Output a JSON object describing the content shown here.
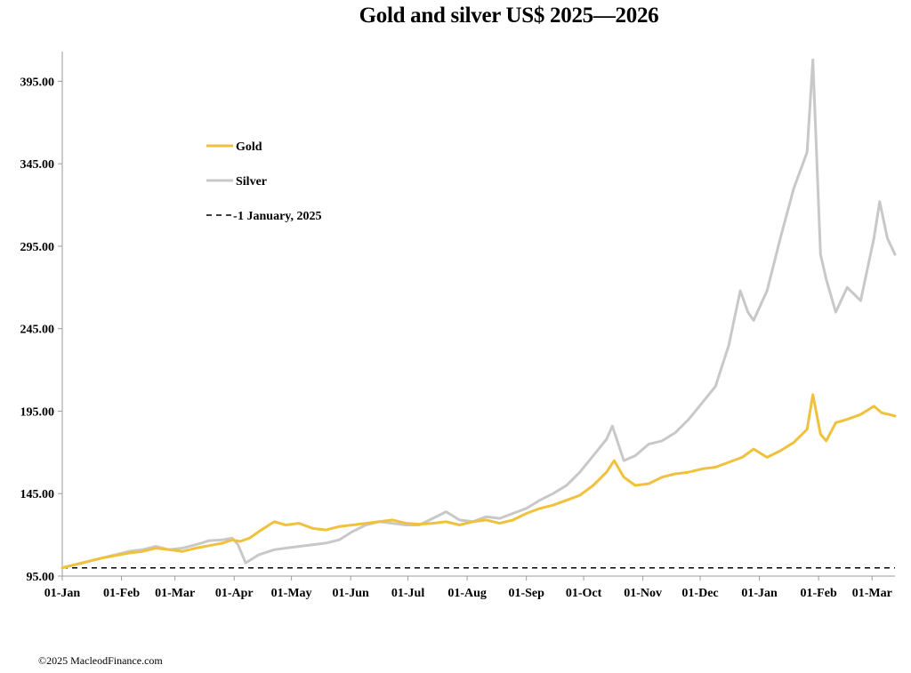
{
  "chart_data": {
    "type": "line",
    "title": "Gold and silver  US$ 2025—2026",
    "xlabel": "",
    "ylabel": "",
    "ylim": [
      95,
      413
    ],
    "yticks": [
      "95.00",
      "145.00",
      "195.00",
      "245.00",
      "295.00",
      "345.00",
      "395.00"
    ],
    "xticks": [
      "01-Jan",
      "01-Feb",
      "01-Mar",
      "01-Apr",
      "01-May",
      "01-Jun",
      "01-Jul",
      "01-Aug",
      "01-Sep",
      "01-Oct",
      "01-Nov",
      "01-Dec",
      "01-Jan",
      "01-Feb",
      "01-Mar"
    ],
    "legend_placement": "upper-left",
    "grid": false,
    "baseline": {
      "label": "1 January, 2025",
      "value": 100,
      "color": "#000000",
      "dash": true
    },
    "series": [
      {
        "name": "Gold",
        "color": "#F0C13C",
        "points": [
          [
            "2025-01-01",
            100
          ],
          [
            "2025-01-08",
            102
          ],
          [
            "2025-01-15",
            104
          ],
          [
            "2025-01-22",
            106
          ],
          [
            "2025-01-29",
            107.5
          ],
          [
            "2025-02-05",
            109
          ],
          [
            "2025-02-12",
            110
          ],
          [
            "2025-02-19",
            112
          ],
          [
            "2025-02-26",
            111
          ],
          [
            "2025-03-05",
            110
          ],
          [
            "2025-03-12",
            112
          ],
          [
            "2025-03-19",
            113.5
          ],
          [
            "2025-03-26",
            115
          ],
          [
            "2025-03-31",
            117
          ],
          [
            "2025-04-04",
            116
          ],
          [
            "2025-04-09",
            118
          ],
          [
            "2025-04-14",
            122
          ],
          [
            "2025-04-22",
            128
          ],
          [
            "2025-04-28",
            126
          ],
          [
            "2025-05-05",
            127
          ],
          [
            "2025-05-12",
            124
          ],
          [
            "2025-05-19",
            123
          ],
          [
            "2025-05-26",
            125
          ],
          [
            "2025-06-02",
            126
          ],
          [
            "2025-06-09",
            127
          ],
          [
            "2025-06-16",
            128
          ],
          [
            "2025-06-23",
            129
          ],
          [
            "2025-06-30",
            127
          ],
          [
            "2025-07-07",
            126.5
          ],
          [
            "2025-07-14",
            127
          ],
          [
            "2025-07-21",
            128
          ],
          [
            "2025-07-28",
            126
          ],
          [
            "2025-08-04",
            128
          ],
          [
            "2025-08-11",
            129
          ],
          [
            "2025-08-18",
            127
          ],
          [
            "2025-08-25",
            129
          ],
          [
            "2025-09-01",
            133
          ],
          [
            "2025-09-08",
            136
          ],
          [
            "2025-09-15",
            138
          ],
          [
            "2025-09-22",
            141
          ],
          [
            "2025-09-29",
            144
          ],
          [
            "2025-10-06",
            150
          ],
          [
            "2025-10-13",
            158
          ],
          [
            "2025-10-17",
            165
          ],
          [
            "2025-10-22",
            155
          ],
          [
            "2025-10-28",
            150
          ],
          [
            "2025-11-04",
            151
          ],
          [
            "2025-11-11",
            155
          ],
          [
            "2025-11-18",
            157
          ],
          [
            "2025-11-25",
            158
          ],
          [
            "2025-12-02",
            160
          ],
          [
            "2025-12-09",
            161
          ],
          [
            "2025-12-16",
            164
          ],
          [
            "2025-12-23",
            167
          ],
          [
            "2025-12-29",
            172
          ],
          [
            "2026-01-05",
            167
          ],
          [
            "2026-01-12",
            171
          ],
          [
            "2026-01-19",
            176
          ],
          [
            "2026-01-26",
            184
          ],
          [
            "2026-01-29",
            205
          ],
          [
            "2026-02-02",
            181
          ],
          [
            "2026-02-05",
            177
          ],
          [
            "2026-02-10",
            188
          ],
          [
            "2026-02-16",
            190
          ],
          [
            "2026-02-23",
            193
          ],
          [
            "2026-03-02",
            198
          ],
          [
            "2026-03-06",
            194
          ],
          [
            "2026-03-10",
            193
          ],
          [
            "2026-03-13",
            192
          ]
        ]
      },
      {
        "name": "Silver",
        "color": "#C8C8C8",
        "points": [
          [
            "2025-01-01",
            100
          ],
          [
            "2025-01-08",
            102
          ],
          [
            "2025-01-15",
            104
          ],
          [
            "2025-01-22",
            106
          ],
          [
            "2025-01-29",
            108
          ],
          [
            "2025-02-05",
            110
          ],
          [
            "2025-02-12",
            111
          ],
          [
            "2025-02-19",
            113
          ],
          [
            "2025-02-26",
            111
          ],
          [
            "2025-03-05",
            112
          ],
          [
            "2025-03-12",
            114
          ],
          [
            "2025-03-19",
            116.5
          ],
          [
            "2025-03-26",
            117
          ],
          [
            "2025-03-31",
            118
          ],
          [
            "2025-04-03",
            114
          ],
          [
            "2025-04-07",
            103
          ],
          [
            "2025-04-14",
            108
          ],
          [
            "2025-04-22",
            111
          ],
          [
            "2025-04-28",
            112
          ],
          [
            "2025-05-05",
            113
          ],
          [
            "2025-05-12",
            114
          ],
          [
            "2025-05-19",
            115
          ],
          [
            "2025-05-26",
            117
          ],
          [
            "2025-06-02",
            122
          ],
          [
            "2025-06-09",
            126
          ],
          [
            "2025-06-16",
            128
          ],
          [
            "2025-06-23",
            127
          ],
          [
            "2025-06-30",
            126
          ],
          [
            "2025-07-07",
            126
          ],
          [
            "2025-07-14",
            130
          ],
          [
            "2025-07-21",
            134
          ],
          [
            "2025-07-28",
            129
          ],
          [
            "2025-08-04",
            128
          ],
          [
            "2025-08-11",
            131
          ],
          [
            "2025-08-18",
            130
          ],
          [
            "2025-08-25",
            133
          ],
          [
            "2025-09-01",
            136
          ],
          [
            "2025-09-08",
            141
          ],
          [
            "2025-09-15",
            145
          ],
          [
            "2025-09-22",
            150
          ],
          [
            "2025-09-29",
            158
          ],
          [
            "2025-10-06",
            168
          ],
          [
            "2025-10-13",
            178
          ],
          [
            "2025-10-16",
            186
          ],
          [
            "2025-10-22",
            165
          ],
          [
            "2025-10-28",
            168
          ],
          [
            "2025-11-04",
            175
          ],
          [
            "2025-11-11",
            177
          ],
          [
            "2025-11-18",
            182
          ],
          [
            "2025-11-25",
            190
          ],
          [
            "2025-12-02",
            200
          ],
          [
            "2025-12-09",
            210
          ],
          [
            "2025-12-16",
            235
          ],
          [
            "2025-12-22",
            268
          ],
          [
            "2025-12-26",
            255
          ],
          [
            "2025-12-29",
            250
          ],
          [
            "2026-01-05",
            268
          ],
          [
            "2026-01-12",
            300
          ],
          [
            "2026-01-19",
            330
          ],
          [
            "2026-01-26",
            352
          ],
          [
            "2026-01-29",
            408
          ],
          [
            "2026-02-02",
            290
          ],
          [
            "2026-02-05",
            275
          ],
          [
            "2026-02-10",
            255
          ],
          [
            "2026-02-16",
            270
          ],
          [
            "2026-02-23",
            262
          ],
          [
            "2026-03-02",
            300
          ],
          [
            "2026-03-05",
            322
          ],
          [
            "2026-03-09",
            300
          ],
          [
            "2026-03-13",
            290
          ]
        ]
      }
    ]
  },
  "footer": {
    "copyright": "©2025 MacleodFinance.com"
  }
}
